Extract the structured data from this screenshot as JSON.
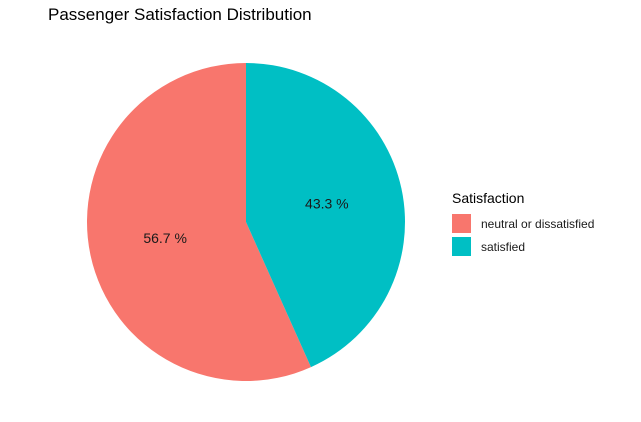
{
  "chart_data": {
    "type": "pie",
    "title": "Passenger Satisfaction Distribution",
    "categories": [
      "neutral or dissatisfied",
      "satisfied"
    ],
    "values": [
      56.7,
      43.3
    ],
    "labels": [
      "56.7 %",
      "43.3 %"
    ],
    "colors": [
      "#f8766d",
      "#00bfc4"
    ],
    "legend": {
      "title": "Satisfaction",
      "placement": "right"
    },
    "start": "12 o'clock",
    "direction": "counterclockwise"
  }
}
